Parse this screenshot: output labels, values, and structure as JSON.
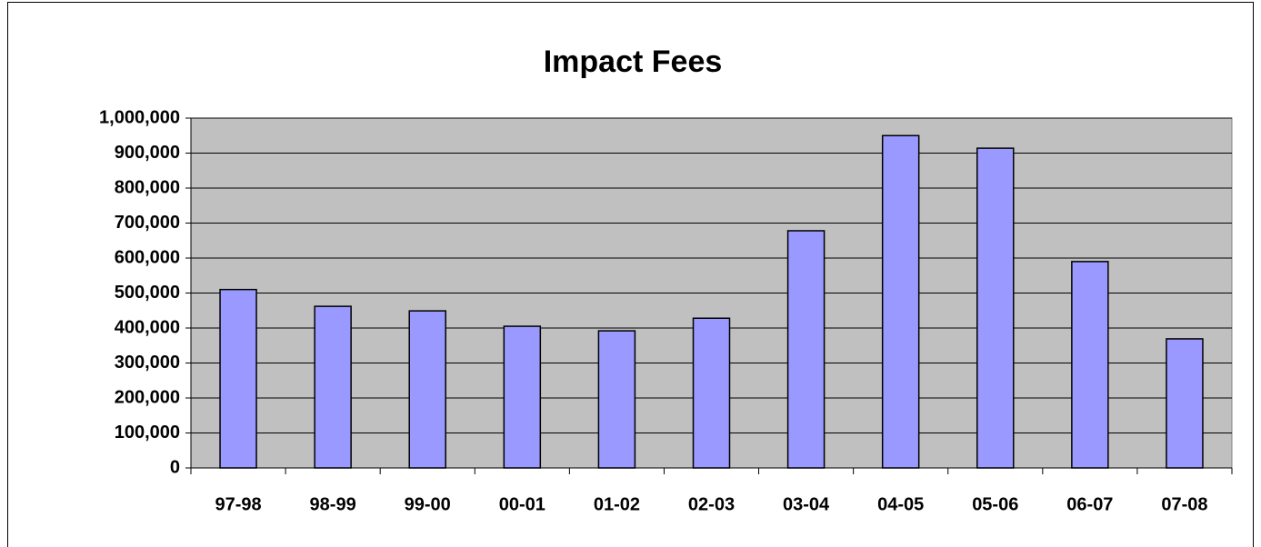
{
  "chart_data": {
    "type": "bar",
    "title": "Impact Fees",
    "categories": [
      "97-98",
      "98-99",
      "99-00",
      "00-01",
      "01-02",
      "02-03",
      "03-04",
      "04-05",
      "05-06",
      "06-07",
      "07-08"
    ],
    "values": [
      510000,
      462000,
      449000,
      405000,
      392000,
      428000,
      678000,
      950000,
      914000,
      590000,
      369000
    ],
    "color": "#9999ff",
    "ylim": [
      0,
      1000000
    ],
    "yticks": [
      0,
      {
        "value": 100000,
        "label": "100,000"
      },
      {
        "value": 200000,
        "label": "200,000"
      },
      {
        "value": 300000,
        "label": "300,000"
      },
      {
        "value": 400000,
        "label": "400,000"
      },
      {
        "value": 500000,
        "label": "500,000"
      },
      {
        "value": 600000,
        "label": "600,000"
      },
      {
        "value": 700000,
        "label": "700,000"
      },
      {
        "value": 800000,
        "label": "800,000"
      },
      {
        "value": 900000,
        "label": "900,000"
      },
      {
        "value": 1000000,
        "label": "1,000,000"
      }
    ],
    "grid": true
  }
}
